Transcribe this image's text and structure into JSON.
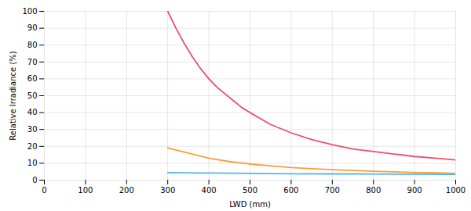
{
  "chart_data": {
    "type": "line",
    "xlabel": "LWD (mm)",
    "ylabel": "Relative Irradiance (%)",
    "xlim": [
      0,
      1000
    ],
    "ylim": [
      0,
      100
    ],
    "xticks": [
      0,
      100,
      200,
      300,
      400,
      500,
      600,
      700,
      800,
      900,
      1000
    ],
    "yticks": [
      0,
      10,
      20,
      30,
      40,
      50,
      60,
      70,
      80,
      90,
      100
    ],
    "grid": true,
    "series": [
      {
        "color": "#e8536a",
        "x": [
          300,
          320,
          340,
          360,
          380,
          400,
          420,
          440,
          460,
          480,
          500,
          550,
          600,
          650,
          700,
          750,
          800,
          850,
          900,
          950,
          1000
        ],
        "values": [
          100,
          90,
          81,
          73,
          66,
          60,
          55,
          51,
          47,
          43,
          40,
          33,
          28,
          24,
          21,
          18.5,
          17,
          15.5,
          14,
          13,
          12
        ]
      },
      {
        "color": "#f5a03a",
        "x": [
          300,
          350,
          400,
          450,
          500,
          550,
          600,
          650,
          700,
          750,
          800,
          850,
          900,
          950,
          1000
        ],
        "values": [
          19,
          16,
          13,
          11,
          9.5,
          8.5,
          7.5,
          6.8,
          6.2,
          5.7,
          5.3,
          4.9,
          4.6,
          4.3,
          4.0
        ]
      },
      {
        "color": "#4db8e8",
        "x": [
          300,
          400,
          500,
          600,
          700,
          800,
          900,
          1000
        ],
        "values": [
          4.5,
          4.2,
          4.0,
          3.8,
          3.7,
          3.6,
          3.5,
          3.4
        ]
      }
    ]
  }
}
